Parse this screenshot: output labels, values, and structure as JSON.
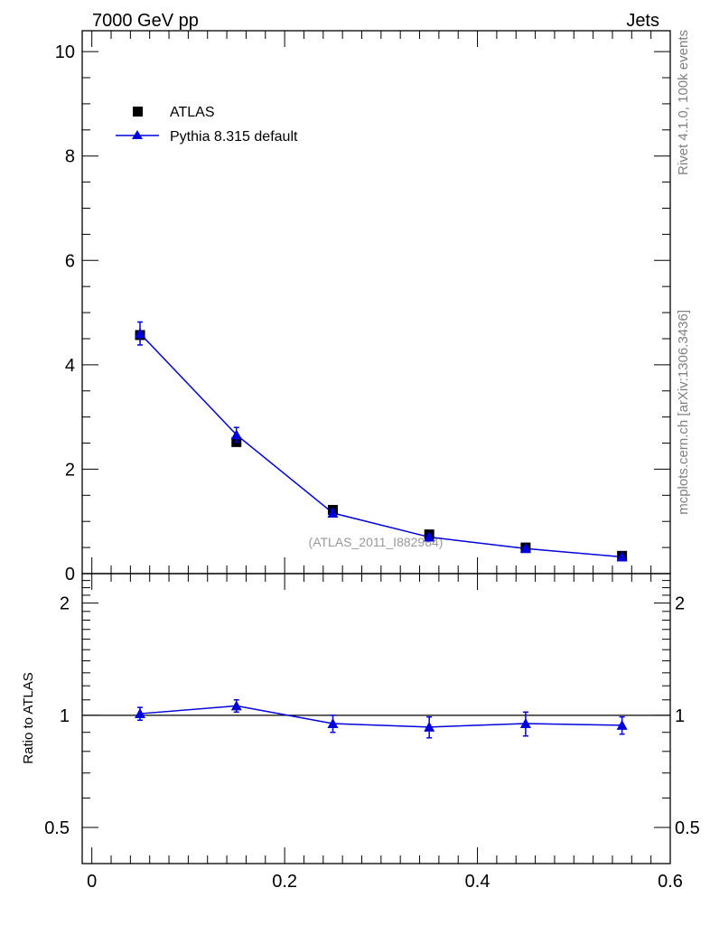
{
  "header": {
    "left": "7000 GeV pp",
    "right": "Jets"
  },
  "side_labels": {
    "rivet": "Rivet 4.1.0,  100k events",
    "mcplots": "mcplots.cern.ch [arXiv:1306.3436]"
  },
  "legend": {
    "data_label": "ATLAS",
    "mc_label": "Pythia 8.315 default"
  },
  "watermark": "(ATLAS_2011_I882984)",
  "colors": {
    "data": "#000000",
    "mc": "#0000dd",
    "watermark": "#999999",
    "side_text": "#808080"
  },
  "chart_data": [
    {
      "type": "scatter",
      "panel": "main",
      "title": "",
      "xlabel": "",
      "ylabel": "",
      "xlim": [
        -0.01,
        0.6
      ],
      "ylim": [
        0,
        10.4
      ],
      "y_ticks": [
        0,
        2,
        4,
        6,
        8,
        10
      ],
      "y_tick_labels": [
        "0",
        "2",
        "4",
        "6",
        "8",
        "10"
      ],
      "series": [
        {
          "name": "ATLAS",
          "style": "markers",
          "marker": "square",
          "x": [
            0.05,
            0.15,
            0.25,
            0.35,
            0.45,
            0.55
          ],
          "values": [
            4.57,
            2.52,
            1.22,
            0.75,
            0.5,
            0.34
          ],
          "errors": [
            0.1,
            0.06,
            0.04,
            0.03,
            0.02,
            0.02
          ]
        },
        {
          "name": "Pythia 8.315 default",
          "style": "line+markers",
          "marker": "triangle",
          "x": [
            0.05,
            0.15,
            0.25,
            0.35,
            0.45,
            0.55
          ],
          "values": [
            4.6,
            2.66,
            1.16,
            0.7,
            0.48,
            0.32
          ],
          "errors": [
            0.22,
            0.14,
            0.06,
            0.04,
            0.03,
            0.02
          ]
        }
      ]
    },
    {
      "type": "scatter",
      "panel": "ratio",
      "ylabel": "Ratio to ATLAS",
      "yscale": "log",
      "xlim": [
        -0.01,
        0.6
      ],
      "ylim": [
        0.4,
        2.4
      ],
      "x_ticks": [
        0,
        0.2,
        0.4,
        0.6
      ],
      "x_tick_labels": [
        "0",
        "0.2",
        "0.4",
        "0.6"
      ],
      "y_ticks": [
        0.5,
        1,
        2
      ],
      "y_tick_labels": [
        "0.5",
        "1",
        "2"
      ],
      "reference_line": 1,
      "series": [
        {
          "name": "Pythia 8.315 default / ATLAS",
          "x": [
            0.05,
            0.15,
            0.25,
            0.35,
            0.45,
            0.55
          ],
          "values": [
            1.01,
            1.06,
            0.95,
            0.93,
            0.95,
            0.94
          ],
          "errors_low": [
            0.04,
            0.04,
            0.05,
            0.06,
            0.07,
            0.05
          ],
          "errors_high": [
            0.04,
            0.04,
            0.05,
            0.06,
            0.07,
            0.05
          ]
        }
      ]
    }
  ]
}
